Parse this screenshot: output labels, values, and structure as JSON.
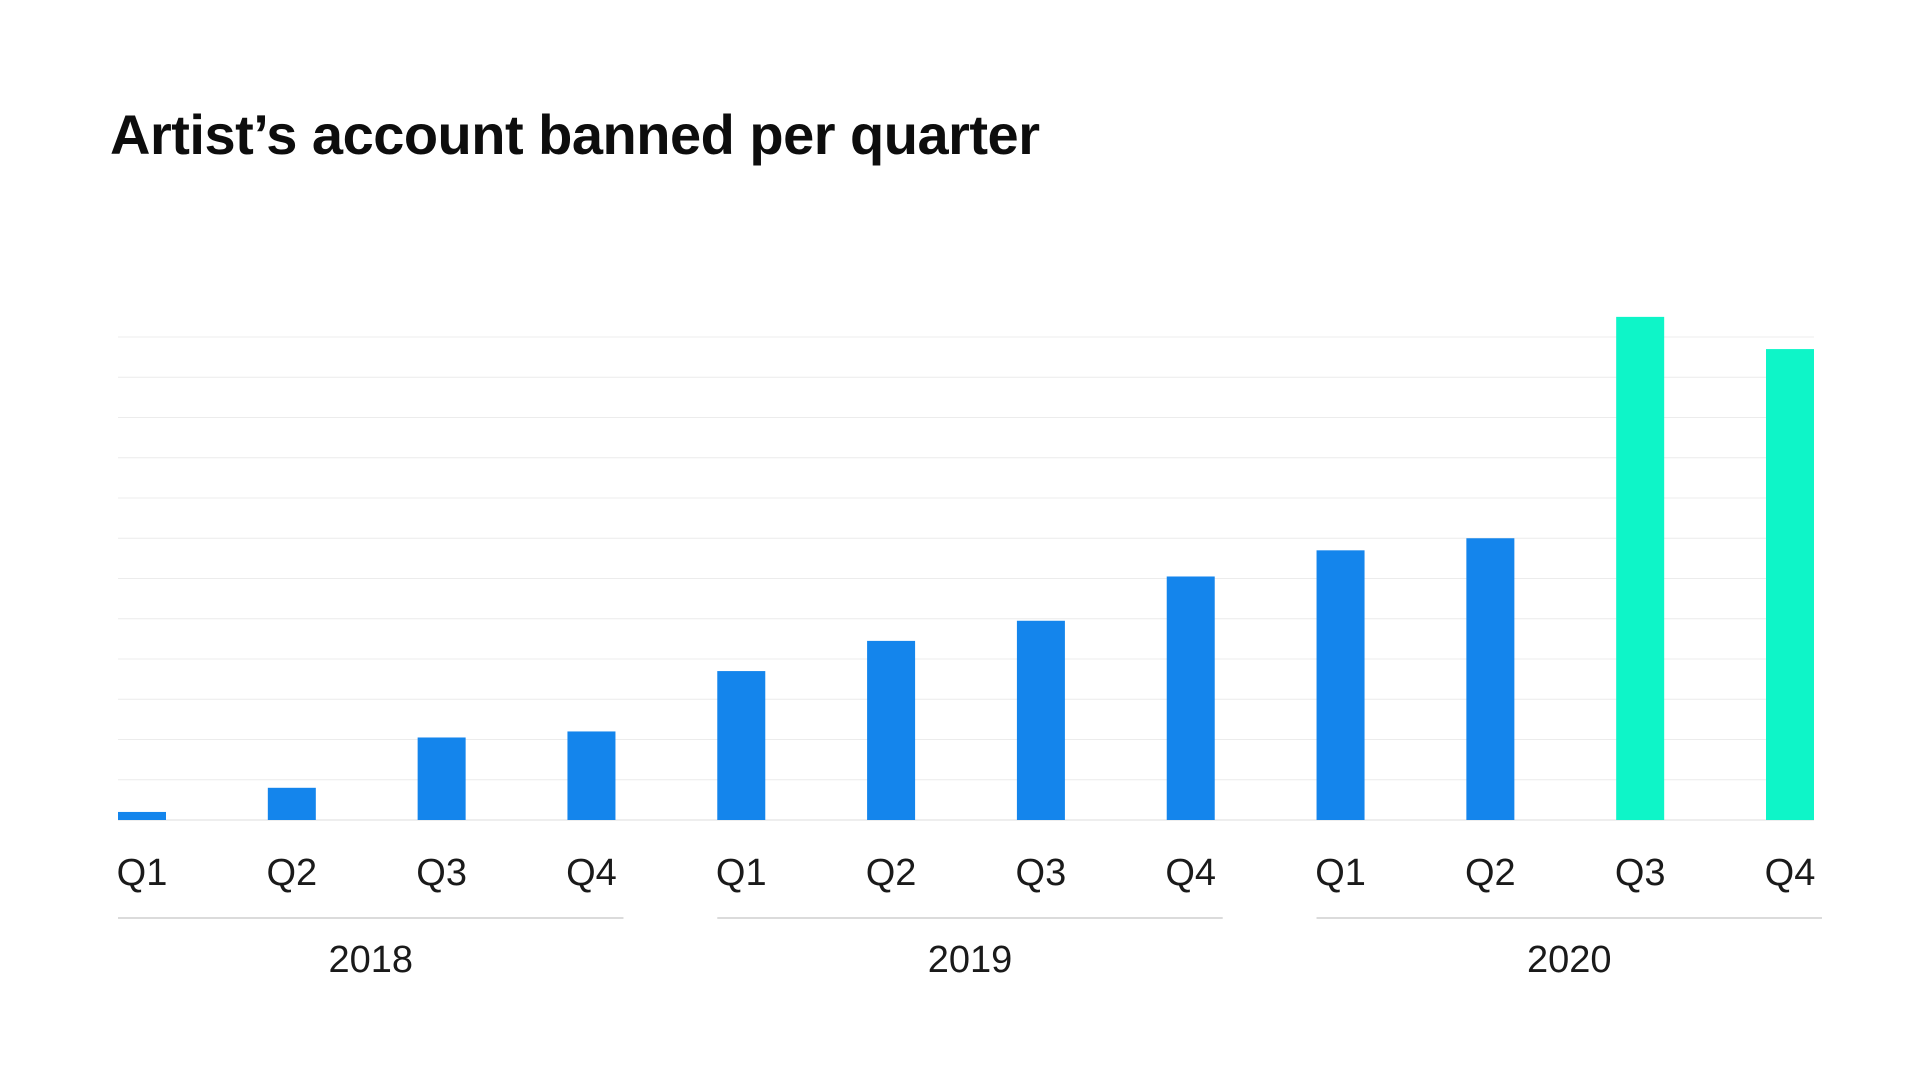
{
  "chart_data": {
    "type": "bar",
    "title": "Artist’s account banned per quarter",
    "xlabel": "",
    "ylabel": "",
    "categories": [
      "Q1",
      "Q2",
      "Q3",
      "Q4",
      "Q1",
      "Q2",
      "Q3",
      "Q4",
      "Q1",
      "Q2",
      "Q3",
      "Q4"
    ],
    "groups": [
      {
        "label": "2018",
        "categories": [
          "Q1",
          "Q2",
          "Q3",
          "Q4"
        ]
      },
      {
        "label": "2019",
        "categories": [
          "Q1",
          "Q2",
          "Q3",
          "Q4"
        ]
      },
      {
        "label": "2020",
        "categories": [
          "Q1",
          "Q2",
          "Q3",
          "Q4"
        ]
      }
    ],
    "values": [
      0.2,
      0.8,
      2.05,
      2.2,
      3.7,
      4.45,
      4.95,
      6.05,
      6.7,
      7.0,
      12.5,
      11.7
    ],
    "bar_colors": [
      "#1485EC",
      "#1485EC",
      "#1485EC",
      "#1485EC",
      "#1485EC",
      "#1485EC",
      "#1485EC",
      "#1485EC",
      "#1485EC",
      "#1485EC",
      "#0EF5C8",
      "#0EF5C8"
    ],
    "ylim": [
      0,
      12
    ],
    "y_ticks_shown": false,
    "grid": true,
    "colors": {
      "primary": "#1485EC",
      "highlight": "#0EF5C8",
      "grid": "#ececec",
      "baseline": "#dddddd"
    }
  }
}
